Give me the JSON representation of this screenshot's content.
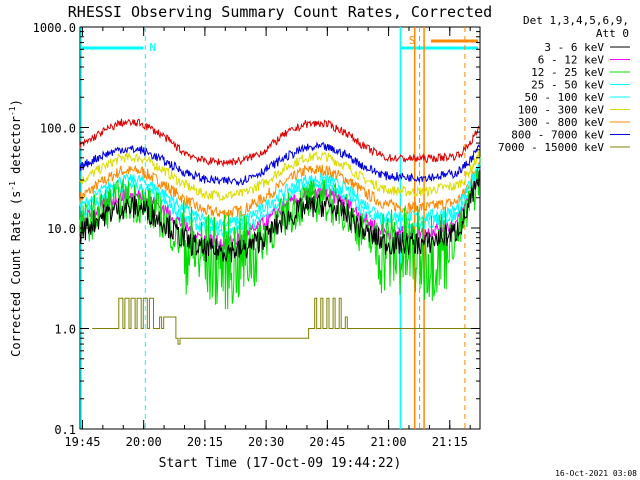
{
  "chart_data": {
    "type": "line",
    "title": "RHESSI Observing Summary Count Rates, Corrected",
    "xlabel": "Start Time (17-Oct-09 19:44:22)",
    "ylabel_main": "Corrected Count Rate (s",
    "ylabel_sup1": "-1",
    "ylabel_mid": " detector",
    "ylabel_sup2": "-1",
    "ylabel_end": ")",
    "y_scale": "log",
    "ylim": [
      0.1,
      1000
    ],
    "xlim_minutes": [
      0,
      98
    ],
    "y_ticks": [
      {
        "value": 1000,
        "label": "1000.0"
      },
      {
        "value": 100,
        "label": "100.0"
      },
      {
        "value": 10,
        "label": "10.0"
      },
      {
        "value": 1,
        "label": "1.0"
      },
      {
        "value": 0.1,
        "label": "0.1"
      }
    ],
    "x_ticks": [
      {
        "minute": 0.6,
        "label": "19:45"
      },
      {
        "minute": 15.6,
        "label": "20:00"
      },
      {
        "minute": 30.6,
        "label": "20:15"
      },
      {
        "minute": 45.6,
        "label": "20:30"
      },
      {
        "minute": 60.6,
        "label": "20:45"
      },
      {
        "minute": 75.6,
        "label": "21:00"
      },
      {
        "minute": 90.6,
        "label": "21:15"
      }
    ],
    "legend_title_1": "Det 1,3,4,5,6,9,",
    "legend_title_2": "Att 0",
    "legend_position": "right",
    "series": [
      {
        "name": "3 - 6 keV",
        "color": "#000000",
        "x": [
          0,
          5,
          10,
          15,
          20,
          25,
          30,
          35,
          40,
          45,
          50,
          55,
          60,
          65,
          70,
          75,
          80,
          85,
          88,
          92,
          94,
          96,
          98
        ],
        "values": [
          9,
          13,
          16,
          16,
          12,
          8,
          6,
          6,
          6,
          8,
          12,
          16,
          17,
          14,
          9,
          7,
          7,
          7,
          8,
          9,
          12,
          20,
          30
        ]
      },
      {
        "name": "6 - 12 keV",
        "color": "#ff00ff",
        "x": [
          0,
          5,
          10,
          15,
          20,
          25,
          30,
          35,
          40,
          45,
          50,
          55,
          60,
          65,
          70,
          75,
          80,
          85,
          88,
          92,
          94,
          96,
          98
        ],
        "values": [
          11,
          16,
          21,
          21,
          16,
          11,
          8,
          7,
          8,
          11,
          16,
          21,
          22,
          18,
          12,
          9,
          9,
          9,
          10,
          11,
          15,
          24,
          36
        ]
      },
      {
        "name": "12 - 25 keV",
        "color": "#00dd00",
        "x": [
          0,
          5,
          10,
          15,
          20,
          25,
          30,
          35,
          40,
          45,
          50,
          55,
          60,
          65,
          70,
          75,
          80,
          85,
          88,
          92,
          94,
          96,
          98
        ],
        "values": [
          10,
          15,
          19,
          18,
          13,
          7,
          5,
          4.5,
          5,
          8,
          13,
          18,
          19,
          15,
          8,
          6,
          5.5,
          5.5,
          6,
          8,
          11,
          20,
          35
        ]
      },
      {
        "name": "25 - 50 keV",
        "color": "#00ffff",
        "x": [
          0,
          5,
          10,
          15,
          20,
          25,
          30,
          35,
          40,
          45,
          50,
          55,
          60,
          65,
          70,
          75,
          80,
          85,
          88,
          92,
          94,
          96,
          98
        ],
        "values": [
          13,
          19,
          25,
          25,
          19,
          13,
          10,
          9,
          10,
          13,
          19,
          25,
          26,
          21,
          14,
          11,
          11,
          11,
          12,
          13,
          17,
          27,
          40
        ]
      },
      {
        "name": "50 - 100 keV",
        "color": "#00ffff",
        "x": [
          0,
          5,
          10,
          15,
          20,
          25,
          30,
          35,
          40,
          45,
          50,
          55,
          60,
          65,
          70,
          75,
          80,
          85,
          88,
          92,
          94,
          96,
          98
        ],
        "values": [
          16,
          23,
          30,
          30,
          23,
          16,
          12,
          11,
          12,
          16,
          23,
          30,
          31,
          25,
          17,
          13,
          13,
          13,
          14,
          15,
          20,
          30,
          45
        ]
      },
      {
        "name": "100 - 300 keV",
        "color": "#dddd00",
        "x": [
          0,
          5,
          10,
          15,
          20,
          25,
          30,
          35,
          40,
          45,
          50,
          55,
          60,
          65,
          70,
          75,
          80,
          85,
          88,
          92,
          94,
          96,
          98
        ],
        "values": [
          29,
          39,
          50,
          50,
          39,
          28,
          22,
          21,
          22,
          28,
          39,
          50,
          52,
          42,
          30,
          24,
          23,
          23,
          25,
          26,
          30,
          40,
          55
        ]
      },
      {
        "name": "300 - 800 keV",
        "color": "#ff8800",
        "x": [
          0,
          5,
          10,
          15,
          20,
          25,
          30,
          35,
          40,
          45,
          50,
          55,
          60,
          65,
          70,
          75,
          80,
          85,
          88,
          92,
          94,
          96,
          98
        ],
        "values": [
          20,
          28,
          37,
          37,
          28,
          20,
          15,
          14,
          15,
          20,
          28,
          37,
          38,
          31,
          22,
          17,
          16,
          16,
          17,
          18,
          22,
          32,
          48
        ]
      },
      {
        "name": "800 - 7000 keV",
        "color": "#0000dd",
        "x": [
          0,
          5,
          10,
          15,
          20,
          25,
          30,
          35,
          40,
          45,
          50,
          55,
          60,
          65,
          70,
          75,
          80,
          85,
          88,
          92,
          94,
          96,
          98
        ],
        "values": [
          40,
          52,
          61,
          60,
          48,
          37,
          31,
          29,
          30,
          37,
          50,
          62,
          64,
          54,
          40,
          33,
          32,
          32,
          33,
          35,
          40,
          50,
          65
        ]
      },
      {
        "name": "7000 - 15000 keV",
        "color": "#808000",
        "x": [
          3,
          9,
          9.5,
          10.5,
          11,
          12,
          12.5,
          13.5,
          14,
          15,
          15.5,
          16.5,
          17,
          18,
          19,
          19.5,
          20,
          20.5,
          23.5,
          24,
          24.5,
          56,
          57,
          57.5,
          58,
          59,
          59.5,
          60.5,
          61,
          62,
          62.5,
          63.5,
          64,
          65,
          65.5,
          68,
          95,
          96
        ],
        "values": [
          1,
          1,
          2,
          1,
          2,
          1,
          2,
          1,
          2,
          1,
          2,
          1,
          2,
          1,
          1,
          1.3,
          1,
          1.3,
          0.8,
          0.7,
          0.8,
          1,
          1,
          2,
          1,
          2,
          1,
          2,
          1,
          2,
          1,
          2,
          1,
          1.3,
          1,
          1,
          1,
          1
        ]
      },
      {
        "name": "",
        "color": "#dd0000",
        "x": [
          0,
          5,
          10,
          15,
          20,
          25,
          30,
          35,
          40,
          45,
          50,
          55,
          60,
          65,
          70,
          75,
          80,
          85,
          88,
          92,
          94,
          96,
          98
        ],
        "values": [
          65,
          88,
          112,
          110,
          85,
          58,
          47,
          45,
          47,
          58,
          85,
          108,
          110,
          90,
          63,
          50,
          49,
          49,
          50,
          52,
          58,
          75,
          100
        ]
      }
    ],
    "annotations": [
      {
        "label": "N",
        "color": "#00ffff",
        "x_minute": 17
      },
      {
        "label": "S",
        "color": "#ff8800",
        "x_minute": 84
      }
    ],
    "footer_date": "16-Oct-2021 03:08"
  }
}
